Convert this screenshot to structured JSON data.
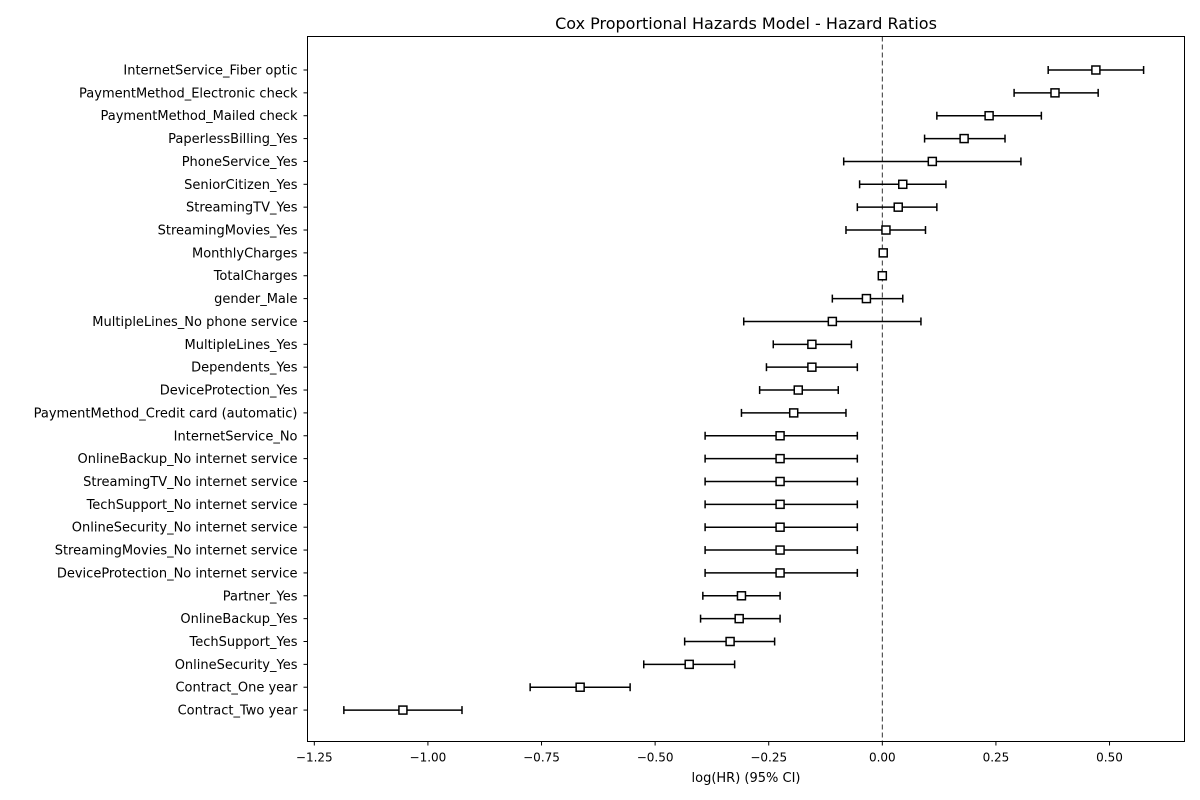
{
  "chart_data": {
    "type": "scatter",
    "title": "Cox Proportional Hazards Model - Hazard Ratios",
    "xlabel": "log(HR) (95% CI)",
    "ylabel": "",
    "xlim": [
      -1.265,
      0.665
    ],
    "xticks": [
      -1.25,
      -1.0,
      -0.75,
      -0.5,
      -0.25,
      0.0,
      0.25,
      0.5
    ],
    "xtick_labels": [
      "−1.25",
      "−1.00",
      "−0.75",
      "−0.50",
      "−0.25",
      "0.00",
      "0.25",
      "0.50"
    ],
    "reference_line": 0.0,
    "grid": false,
    "series": [
      {
        "points": [
          {
            "label": "InternetService_Fiber optic",
            "coef": 0.47,
            "lower": 0.365,
            "upper": 0.575
          },
          {
            "label": "PaymentMethod_Electronic check",
            "coef": 0.38,
            "lower": 0.29,
            "upper": 0.475
          },
          {
            "label": "PaymentMethod_Mailed check",
            "coef": 0.235,
            "lower": 0.12,
            "upper": 0.35
          },
          {
            "label": "PaperlessBilling_Yes",
            "coef": 0.18,
            "lower": 0.093,
            "upper": 0.27
          },
          {
            "label": "PhoneService_Yes",
            "coef": 0.11,
            "lower": -0.085,
            "upper": 0.305
          },
          {
            "label": "SeniorCitizen_Yes",
            "coef": 0.045,
            "lower": -0.05,
            "upper": 0.14
          },
          {
            "label": "StreamingTV_Yes",
            "coef": 0.035,
            "lower": -0.055,
            "upper": 0.12
          },
          {
            "label": "StreamingMovies_Yes",
            "coef": 0.008,
            "lower": -0.08,
            "upper": 0.095
          },
          {
            "label": "MonthlyCharges",
            "coef": 0.002,
            "lower": 0.0,
            "upper": 0.004
          },
          {
            "label": "TotalCharges",
            "coef": 0.0,
            "lower": -0.001,
            "upper": 0.001
          },
          {
            "label": "gender_Male",
            "coef": -0.035,
            "lower": -0.11,
            "upper": 0.045
          },
          {
            "label": "MultipleLines_No phone service",
            "coef": -0.11,
            "lower": -0.305,
            "upper": 0.085
          },
          {
            "label": "MultipleLines_Yes",
            "coef": -0.155,
            "lower": -0.24,
            "upper": -0.068
          },
          {
            "label": "Dependents_Yes",
            "coef": -0.155,
            "lower": -0.255,
            "upper": -0.055
          },
          {
            "label": "DeviceProtection_Yes",
            "coef": -0.185,
            "lower": -0.27,
            "upper": -0.097
          },
          {
            "label": "PaymentMethod_Credit card (automatic)",
            "coef": -0.195,
            "lower": -0.31,
            "upper": -0.08
          },
          {
            "label": "InternetService_No",
            "coef": -0.225,
            "lower": -0.39,
            "upper": -0.055
          },
          {
            "label": "OnlineBackup_No internet service",
            "coef": -0.225,
            "lower": -0.39,
            "upper": -0.055
          },
          {
            "label": "StreamingTV_No internet service",
            "coef": -0.225,
            "lower": -0.39,
            "upper": -0.055
          },
          {
            "label": "TechSupport_No internet service",
            "coef": -0.225,
            "lower": -0.39,
            "upper": -0.055
          },
          {
            "label": "OnlineSecurity_No internet service",
            "coef": -0.225,
            "lower": -0.39,
            "upper": -0.055
          },
          {
            "label": "StreamingMovies_No internet service",
            "coef": -0.225,
            "lower": -0.39,
            "upper": -0.055
          },
          {
            "label": "DeviceProtection_No internet service",
            "coef": -0.225,
            "lower": -0.39,
            "upper": -0.055
          },
          {
            "label": "Partner_Yes",
            "coef": -0.31,
            "lower": -0.395,
            "upper": -0.225
          },
          {
            "label": "OnlineBackup_Yes",
            "coef": -0.315,
            "lower": -0.4,
            "upper": -0.225
          },
          {
            "label": "TechSupport_Yes",
            "coef": -0.335,
            "lower": -0.435,
            "upper": -0.237
          },
          {
            "label": "OnlineSecurity_Yes",
            "coef": -0.425,
            "lower": -0.525,
            "upper": -0.325
          },
          {
            "label": "Contract_One year",
            "coef": -0.665,
            "lower": -0.775,
            "upper": -0.555
          },
          {
            "label": "Contract_Two year",
            "coef": -1.055,
            "lower": -1.185,
            "upper": -0.925
          }
        ]
      }
    ],
    "colors": {
      "marker_edge": "#000000",
      "marker_fill": "#ffffff",
      "errorbar": "#000000",
      "reference_line": "#333333",
      "axes": "#000000"
    },
    "marker": "square-icon"
  }
}
